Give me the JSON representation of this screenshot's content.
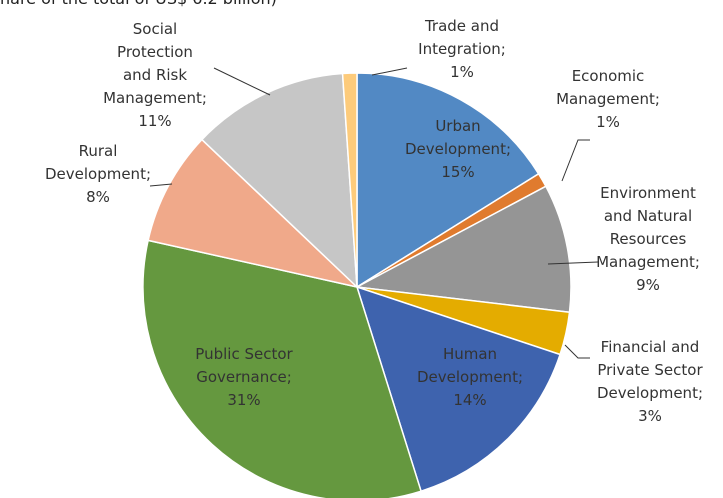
{
  "chart_data": {
    "type": "pie",
    "subtitle": "hare of the total of US$ 6.2 billion)",
    "categories": [
      "Urban Development;",
      "Economic Management;",
      "Environment and Natural Resources Management;",
      "Financial and Private Sector Development;",
      "Human Development;",
      "Public Sector Governance;",
      "Rural Development;",
      "Social Protection and Risk Management;",
      "Trade and Integration;"
    ],
    "values": [
      15,
      1,
      9,
      3,
      14,
      31,
      8,
      11,
      1
    ],
    "value_labels": [
      "15%",
      "1%",
      "9%",
      "3%",
      "14%",
      "31%",
      "8%",
      "11%",
      "1%"
    ],
    "colors": [
      "#5289c4",
      "#e07b2e",
      "#959595",
      "#e4ac00",
      "#3e63ae",
      "#65983f",
      "#f0a98a",
      "#c6c6c6",
      "#fdcb7b"
    ]
  }
}
